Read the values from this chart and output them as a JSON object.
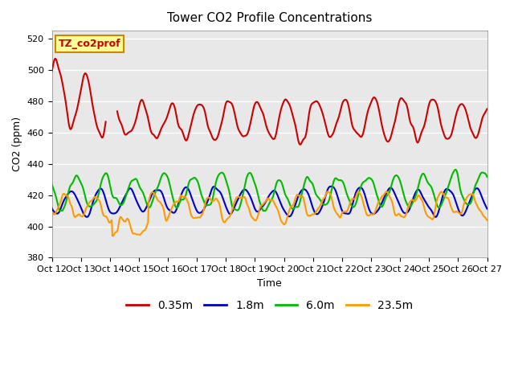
{
  "title": "Tower CO2 Profile Concentrations",
  "xlabel": "Time",
  "ylabel": "CO2 (ppm)",
  "ylim": [
    380,
    525
  ],
  "yticks": [
    380,
    400,
    420,
    440,
    460,
    480,
    500,
    520
  ],
  "annotation_text": "TZ_co2prof",
  "annotation_color": "#ffff99",
  "annotation_border": "#cc8800",
  "x_tick_labels": [
    "Oct 12",
    "Oct 13",
    "Oct 14",
    "Oct 15",
    "Oct 16",
    "Oct 17",
    "Oct 18",
    "Oct 19",
    "Oct 20",
    "Oct 21",
    "Oct 22",
    "Oct 23",
    "Oct 24",
    "Oct 25",
    "Oct 26",
    "Oct 27"
  ],
  "series_colors": {
    "0.35m": "#cc0000",
    "1.8m": "#0000cc",
    "6.0m": "#00bb00",
    "23.5m": "#ff9900"
  },
  "plot_bg_color": "#e8e8e8",
  "line_width": 1.5,
  "seed": 42
}
